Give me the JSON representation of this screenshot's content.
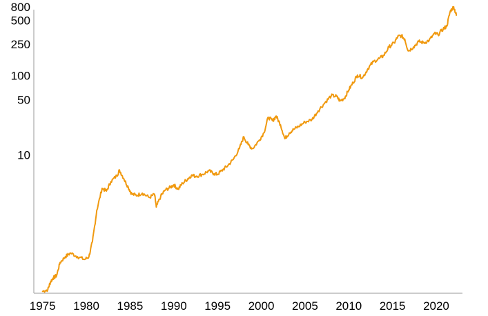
{
  "chart_data": {
    "type": "line",
    "title": "",
    "xlabel": "",
    "ylabel": "",
    "y_scale": "log",
    "grid": false,
    "legend": "none",
    "xlim": [
      1974,
      2023
    ],
    "ylim": [
      0.18,
      800
    ],
    "x_ticks": [
      1975,
      1980,
      1985,
      1990,
      1995,
      2000,
      2005,
      2010,
      2015,
      2020
    ],
    "x_tick_labels": [
      "1975",
      "1980",
      "1985",
      "1990",
      "1995",
      "2000",
      "2005",
      "2010",
      "2015",
      "2020"
    ],
    "y_ticks": [
      10,
      50,
      100,
      250,
      500,
      800
    ],
    "y_tick_labels": [
      "10",
      "50",
      "100",
      "250",
      "500",
      "800"
    ],
    "series": [
      {
        "color": "#f0990f",
        "points": [
          [
            1975.0,
            0.19
          ],
          [
            1975.6,
            0.2
          ],
          [
            1975.9,
            0.25
          ],
          [
            1976.2,
            0.28
          ],
          [
            1976.6,
            0.3
          ],
          [
            1977.0,
            0.44
          ],
          [
            1977.6,
            0.52
          ],
          [
            1978.2,
            0.58
          ],
          [
            1979.0,
            0.52
          ],
          [
            1979.8,
            0.48
          ],
          [
            1980.3,
            0.52
          ],
          [
            1980.7,
            0.8
          ],
          [
            1981.2,
            2.0
          ],
          [
            1981.8,
            3.8
          ],
          [
            1982.3,
            3.5
          ],
          [
            1982.8,
            4.6
          ],
          [
            1983.5,
            5.5
          ],
          [
            1983.8,
            6.4
          ],
          [
            1984.3,
            5.0
          ],
          [
            1984.8,
            3.9
          ],
          [
            1985.2,
            3.2
          ],
          [
            1985.8,
            3.1
          ],
          [
            1986.4,
            3.3
          ],
          [
            1987.2,
            2.9
          ],
          [
            1987.8,
            3.2
          ],
          [
            1988.0,
            2.2
          ],
          [
            1988.5,
            3.0
          ],
          [
            1989.0,
            3.6
          ],
          [
            1989.6,
            3.9
          ],
          [
            1990.0,
            4.2
          ],
          [
            1990.5,
            3.7
          ],
          [
            1991.0,
            4.4
          ],
          [
            1991.6,
            5.0
          ],
          [
            1992.0,
            5.5
          ],
          [
            1992.6,
            5.4
          ],
          [
            1993.3,
            5.7
          ],
          [
            1994.0,
            6.3
          ],
          [
            1994.6,
            5.8
          ],
          [
            1995.0,
            5.7
          ],
          [
            1995.6,
            6.5
          ],
          [
            1996.2,
            7.4
          ],
          [
            1996.8,
            8.8
          ],
          [
            1997.5,
            12.0
          ],
          [
            1998.0,
            17.0
          ],
          [
            1998.5,
            13.5
          ],
          [
            1999.0,
            12.0
          ],
          [
            1999.7,
            15.0
          ],
          [
            2000.3,
            19.0
          ],
          [
            2000.8,
            30.0
          ],
          [
            2001.3,
            27.0
          ],
          [
            2001.7,
            31.0
          ],
          [
            2002.2,
            24.0
          ],
          [
            2002.7,
            16.0
          ],
          [
            2003.2,
            19.0
          ],
          [
            2003.7,
            21.0
          ],
          [
            2004.3,
            23.0
          ],
          [
            2005.0,
            26.0
          ],
          [
            2005.8,
            28.0
          ],
          [
            2006.5,
            36.0
          ],
          [
            2007.3,
            46.0
          ],
          [
            2008.0,
            56.0
          ],
          [
            2008.6,
            55.0
          ],
          [
            2009.0,
            48.0
          ],
          [
            2009.5,
            52.0
          ],
          [
            2010.0,
            66.0
          ],
          [
            2010.5,
            82.0
          ],
          [
            2011.0,
            102.0
          ],
          [
            2011.6,
            95.0
          ],
          [
            2012.2,
            123.0
          ],
          [
            2012.8,
            150.0
          ],
          [
            2013.5,
            165.0
          ],
          [
            2014.0,
            180.0
          ],
          [
            2014.6,
            230.0
          ],
          [
            2015.2,
            260.0
          ],
          [
            2015.6,
            310.0
          ],
          [
            2016.0,
            320.0
          ],
          [
            2016.4,
            290.0
          ],
          [
            2016.8,
            205.0
          ],
          [
            2017.4,
            230.0
          ],
          [
            2018.0,
            270.0
          ],
          [
            2018.6,
            260.0
          ],
          [
            2019.2,
            280.0
          ],
          [
            2019.8,
            340.0
          ],
          [
            2020.2,
            330.0
          ],
          [
            2020.8,
            390.0
          ],
          [
            2021.2,
            420.0
          ],
          [
            2021.6,
            650.0
          ],
          [
            2022.0,
            740.0
          ],
          [
            2022.3,
            580.0
          ]
        ]
      }
    ]
  }
}
